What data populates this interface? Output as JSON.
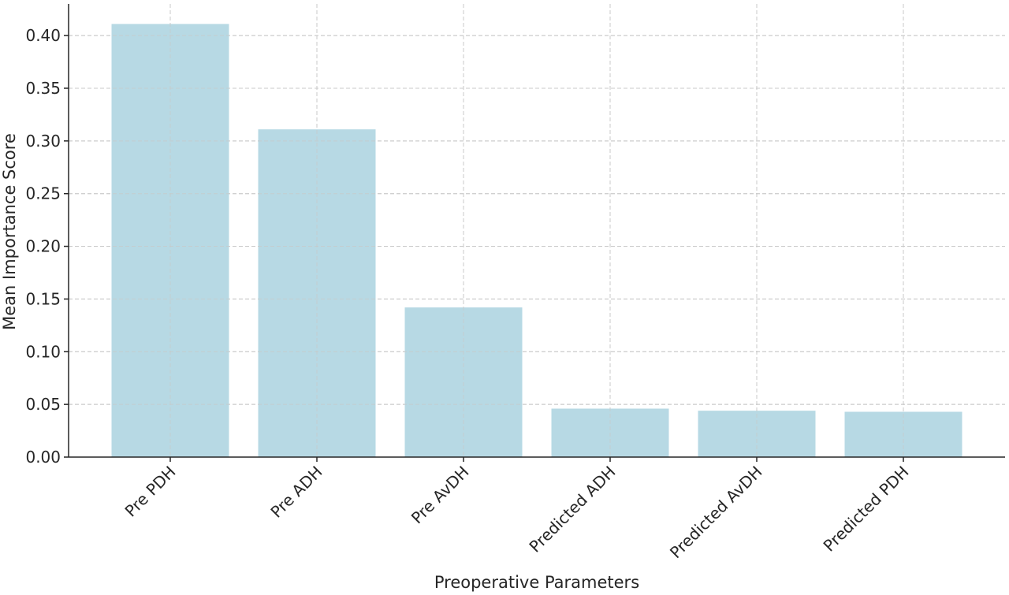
{
  "chart_data": {
    "type": "bar",
    "title": "",
    "xlabel": "Preoperative Parameters",
    "ylabel": "Mean Importance Score",
    "categories": [
      "Pre PDH",
      "Pre ADH",
      "Pre AvDH",
      "Predicted ADH",
      "Predicted AvDH",
      "Predicted PDH"
    ],
    "values": [
      0.411,
      0.311,
      0.142,
      0.046,
      0.044,
      0.043
    ],
    "ylim": [
      0,
      0.43
    ],
    "yticks": [
      "0.00",
      "0.05",
      "0.10",
      "0.15",
      "0.20",
      "0.25",
      "0.30",
      "0.35",
      "0.40"
    ],
    "grid": true,
    "bar_color": "#b7d9e4",
    "grid_color": "#c8c8c8",
    "axis_color": "#262626"
  }
}
